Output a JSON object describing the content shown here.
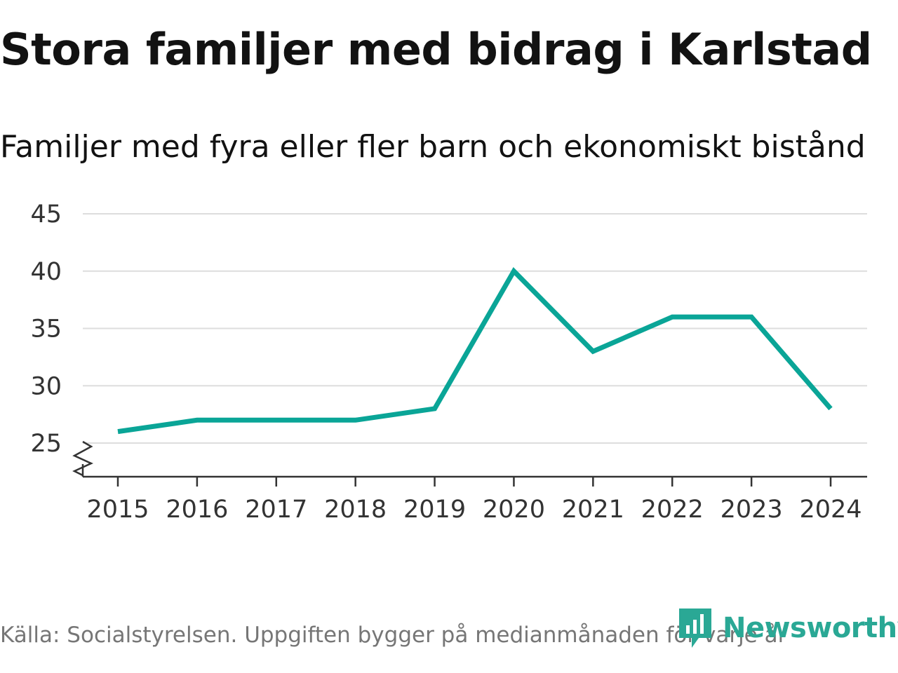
{
  "title": "Stora familjer med bidrag i Karlstad",
  "subtitle": "Familjer med fyra eller fler barn och ekonomiskt bistånd",
  "source": "Källa: Socialstyrelsen. Uppgiften bygger på medianmånaden för varje år",
  "brand": {
    "name": "Newsworthy",
    "icon": "newsworthy-logo-icon"
  },
  "colors": {
    "line": "#0aa597",
    "grid": "#dddddd",
    "axis": "#333333",
    "text": "#333333",
    "brand": "#2aa895"
  },
  "chart_data": {
    "type": "line",
    "title": "Stora familjer med bidrag i Karlstad",
    "subtitle": "Familjer med fyra eller fler barn och ekonomiskt bistånd",
    "xlabel": "",
    "ylabel": "",
    "x": [
      "2015",
      "2016",
      "2017",
      "2018",
      "2019",
      "2020",
      "2021",
      "2022",
      "2023",
      "2024"
    ],
    "series": [
      {
        "name": "Familjer med fyra eller fler barn och ekonomiskt bistånd",
        "values": [
          26,
          27,
          27,
          27,
          28,
          40,
          33,
          36,
          36,
          28
        ]
      }
    ],
    "yticks": [
      25,
      30,
      35,
      40,
      45
    ],
    "ylim": [
      25,
      45
    ],
    "axis_break": true,
    "grid": true,
    "legend": "none"
  }
}
